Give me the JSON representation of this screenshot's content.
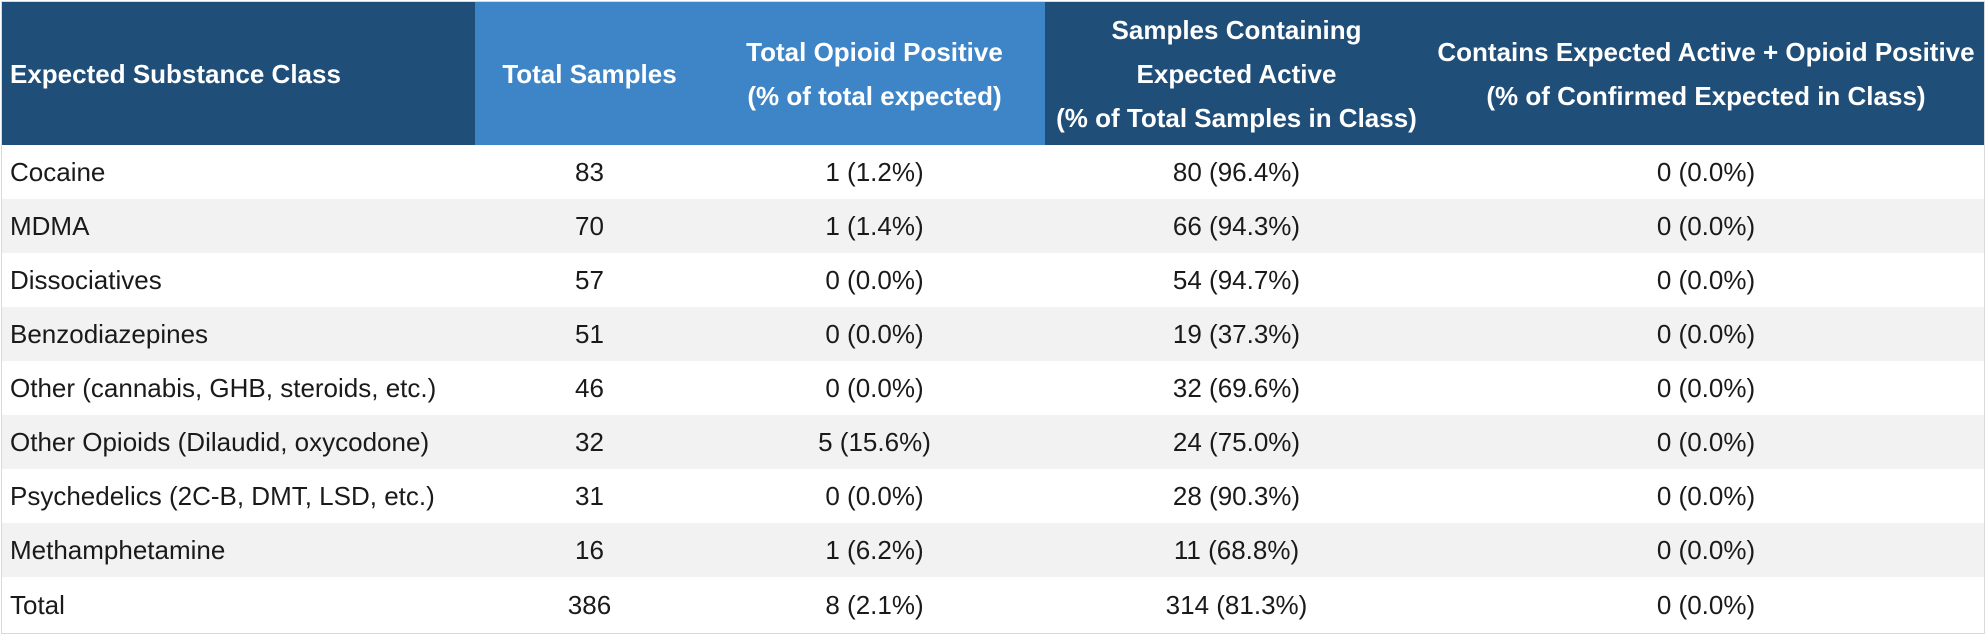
{
  "headers": [
    "Expected Substance Class",
    "Total Samples",
    "Total Opioid Positive\n(% of total expected)",
    "Samples Containing\nExpected Active\n(% of Total Samples in Class)",
    "Contains Expected Active + Opioid Positive\n(% of Confirmed Expected in Class)"
  ],
  "rows": [
    [
      "Cocaine",
      "83",
      "1 (1.2%)",
      "80 (96.4%)",
      "0 (0.0%)"
    ],
    [
      "MDMA",
      "70",
      "1 (1.4%)",
      "66 (94.3%)",
      "0 (0.0%)"
    ],
    [
      "Dissociatives",
      "57",
      "0 (0.0%)",
      "54 (94.7%)",
      "0 (0.0%)"
    ],
    [
      "Benzodiazepines",
      "51",
      "0 (0.0%)",
      "19 (37.3%)",
      "0 (0.0%)"
    ],
    [
      "Other (cannabis, GHB, steroids, etc.)",
      "46",
      "0 (0.0%)",
      "32 (69.6%)",
      "0 (0.0%)"
    ],
    [
      "Other Opioids (Dilaudid, oxycodone)",
      "32",
      "5 (15.6%)",
      "24 (75.0%)",
      "0 (0.0%)"
    ],
    [
      "Psychedelics (2C-B, DMT, LSD, etc.)",
      "31",
      "0 (0.0%)",
      "28 (90.3%)",
      "0 (0.0%)"
    ],
    [
      "Methamphetamine",
      "16",
      "1 (6.2%)",
      "11 (68.8%)",
      "0 (0.0%)"
    ]
  ],
  "total": [
    "Total",
    "386",
    "8 (2.1%)",
    "314 (81.3%)",
    "0 (0.0%)"
  ],
  "colors": {
    "header_dark": "#1f4e79",
    "header_light": "#3d85c6",
    "row_alt": "#f2f2f2"
  }
}
